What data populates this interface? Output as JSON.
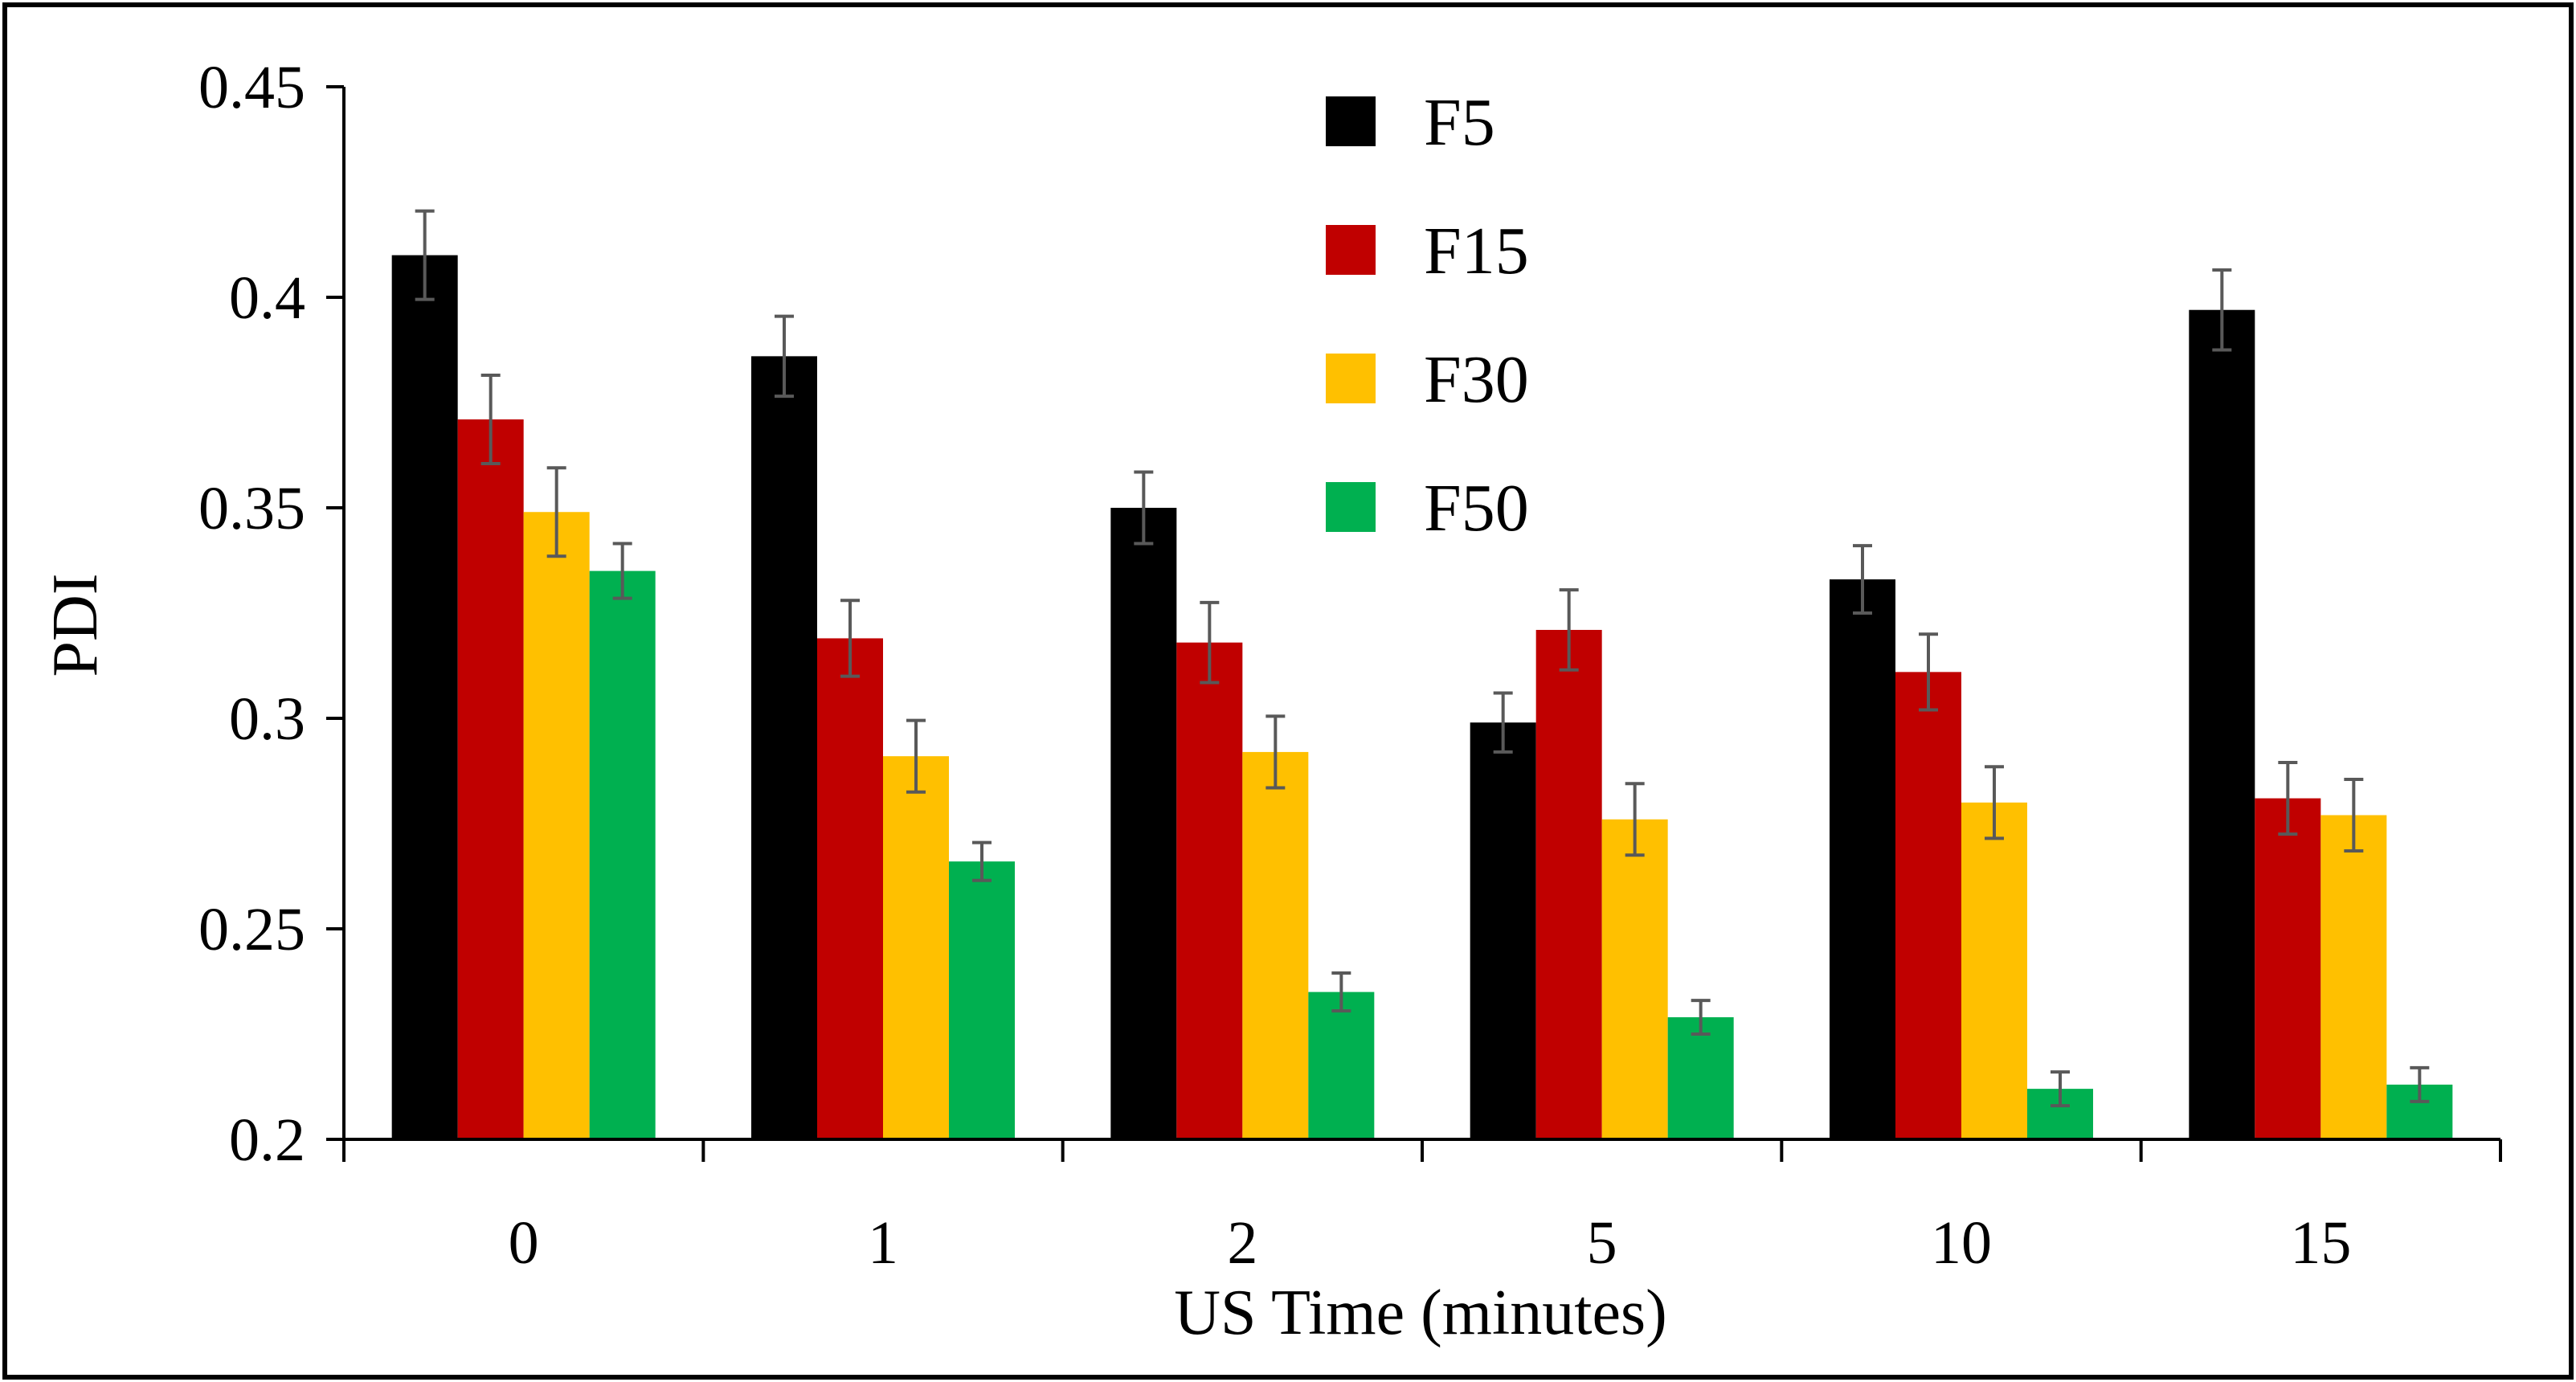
{
  "chart_data": {
    "type": "bar",
    "title": "",
    "xlabel": "US Time (minutes)",
    "ylabel": "PDI",
    "ylim": [
      0.2,
      0.45
    ],
    "yticks": [
      0.2,
      0.25,
      0.3,
      0.35,
      0.4,
      0.45
    ],
    "ytick_labels": [
      "0.2",
      "0.25",
      "0.3",
      "0.35",
      "0.4",
      "0.45"
    ],
    "categories": [
      "0",
      "1",
      "2",
      "5",
      "10",
      "15"
    ],
    "legend_position": "top-center",
    "grid": false,
    "series": [
      {
        "name": "F5",
        "color": "#000000",
        "values": [
          0.41,
          0.386,
          0.35,
          0.299,
          0.333,
          0.397
        ],
        "errors": [
          0.0105,
          0.0095,
          0.0085,
          0.007,
          0.008,
          0.0095
        ]
      },
      {
        "name": "F15",
        "color": "#c00000",
        "values": [
          0.371,
          0.319,
          0.318,
          0.321,
          0.311,
          0.281
        ],
        "errors": [
          0.0105,
          0.009,
          0.0095,
          0.0095,
          0.009,
          0.0085
        ]
      },
      {
        "name": "F30",
        "color": "#ffc000",
        "values": [
          0.349,
          0.291,
          0.292,
          0.276,
          0.28,
          0.277
        ],
        "errors": [
          0.0105,
          0.0085,
          0.0085,
          0.0085,
          0.0085,
          0.0085
        ]
      },
      {
        "name": "F50",
        "color": "#00b050",
        "values": [
          0.335,
          0.266,
          0.235,
          0.229,
          0.212,
          0.213
        ],
        "errors": [
          0.0065,
          0.0045,
          0.0045,
          0.004,
          0.004,
          0.004
        ]
      }
    ]
  }
}
